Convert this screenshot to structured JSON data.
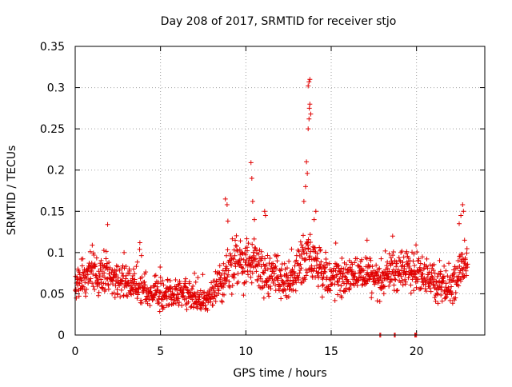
{
  "chart_data": {
    "type": "scatter",
    "title": "Day 208 of 2017, SRMTID for receiver stjo",
    "xlabel": "GPS time / hours",
    "ylabel": "SRMTID / TECUs",
    "xlim": [
      0,
      24
    ],
    "ylim": [
      0,
      0.35
    ],
    "x_ticks": [
      0,
      5,
      10,
      15,
      20
    ],
    "x_tick_labels": [
      "0",
      "5",
      "10",
      "15",
      "20"
    ],
    "y_ticks": [
      0,
      0.05,
      0.1,
      0.15,
      0.2,
      0.25,
      0.3,
      0.35
    ],
    "y_tick_labels": [
      "0",
      "0.05",
      "0.1",
      "0.15",
      "0.2",
      "0.25",
      "0.3",
      "0.35"
    ],
    "grid": true,
    "marker": "plus",
    "marker_color": "#e00000",
    "series": [
      {
        "name": "SRMTID",
        "trend": {
          "x": [
            0,
            0.5,
            1,
            1.5,
            2,
            2.5,
            3,
            3.5,
            4,
            4.5,
            5,
            5.5,
            6,
            6.5,
            7,
            7.5,
            8,
            8.5,
            9,
            9.5,
            10,
            10.5,
            11,
            11.5,
            12,
            12.5,
            13,
            13.5,
            14,
            14.5,
            15,
            15.5,
            16,
            16.5,
            17,
            17.5,
            18,
            18.5,
            19,
            19.5,
            20,
            20.5,
            21,
            21.5,
            22,
            22.5,
            23
          ],
          "y": [
            0.058,
            0.07,
            0.072,
            0.07,
            0.075,
            0.068,
            0.062,
            0.06,
            0.055,
            0.05,
            0.05,
            0.048,
            0.05,
            0.052,
            0.042,
            0.04,
            0.045,
            0.065,
            0.085,
            0.09,
            0.085,
            0.095,
            0.07,
            0.075,
            0.07,
            0.06,
            0.08,
            0.1,
            0.09,
            0.075,
            0.07,
            0.072,
            0.07,
            0.075,
            0.072,
            0.07,
            0.068,
            0.08,
            0.075,
            0.08,
            0.078,
            0.07,
            0.065,
            0.06,
            0.055,
            0.075,
            0.085
          ],
          "spread": [
            0.018,
            0.02,
            0.022,
            0.022,
            0.022,
            0.02,
            0.02,
            0.018,
            0.018,
            0.018,
            0.018,
            0.017,
            0.017,
            0.017,
            0.015,
            0.014,
            0.016,
            0.025,
            0.028,
            0.025,
            0.025,
            0.025,
            0.022,
            0.022,
            0.022,
            0.02,
            0.025,
            0.03,
            0.025,
            0.022,
            0.02,
            0.02,
            0.02,
            0.02,
            0.02,
            0.02,
            0.02,
            0.022,
            0.022,
            0.022,
            0.022,
            0.02,
            0.02,
            0.02,
            0.02,
            0.025,
            0.02
          ]
        },
        "points_per_hour": 64,
        "peaks": [
          {
            "x": 1.9,
            "y": 0.134
          },
          {
            "x": 8.8,
            "y": 0.165
          },
          {
            "x": 8.9,
            "y": 0.158
          },
          {
            "x": 10.3,
            "y": 0.209
          },
          {
            "x": 10.35,
            "y": 0.19
          },
          {
            "x": 10.4,
            "y": 0.162
          },
          {
            "x": 10.5,
            "y": 0.14
          },
          {
            "x": 11.1,
            "y": 0.15
          },
          {
            "x": 11.15,
            "y": 0.145
          },
          {
            "x": 13.5,
            "y": 0.18
          },
          {
            "x": 13.55,
            "y": 0.21
          },
          {
            "x": 13.6,
            "y": 0.196
          },
          {
            "x": 13.65,
            "y": 0.25
          },
          {
            "x": 13.7,
            "y": 0.262
          },
          {
            "x": 13.72,
            "y": 0.275
          },
          {
            "x": 13.75,
            "y": 0.28
          },
          {
            "x": 13.65,
            "y": 0.302
          },
          {
            "x": 13.7,
            "y": 0.307
          },
          {
            "x": 13.75,
            "y": 0.31
          },
          {
            "x": 13.8,
            "y": 0.268
          },
          {
            "x": 13.4,
            "y": 0.162
          },
          {
            "x": 14.1,
            "y": 0.15
          },
          {
            "x": 14.0,
            "y": 0.14
          },
          {
            "x": 22.5,
            "y": 0.135
          },
          {
            "x": 22.6,
            "y": 0.145
          },
          {
            "x": 22.7,
            "y": 0.158
          },
          {
            "x": 22.75,
            "y": 0.15
          },
          {
            "x": 17.1,
            "y": 0.115
          },
          {
            "x": 18.6,
            "y": 0.12
          }
        ],
        "zero_points": [
          {
            "x": 17.85,
            "y": 0
          },
          {
            "x": 17.9,
            "y": 0
          },
          {
            "x": 18.7,
            "y": 0
          },
          {
            "x": 18.75,
            "y": 0
          },
          {
            "x": 19.9,
            "y": 0
          },
          {
            "x": 19.95,
            "y": 0
          },
          {
            "x": 20.0,
            "y": 0
          }
        ]
      }
    ]
  }
}
